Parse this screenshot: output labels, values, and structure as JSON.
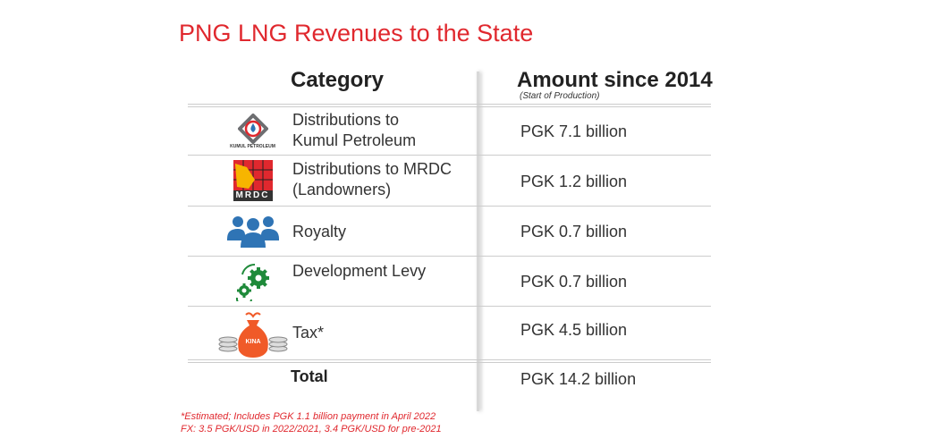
{
  "title": "PNG LNG Revenues to the State",
  "headers": {
    "category": "Category",
    "amount": "Amount since 2014",
    "amount_note": "(Start of Production)"
  },
  "rows": [
    {
      "icon": "kumul-petroleum-logo",
      "logo_text": "KUMUL PETROLEUM",
      "line1": "Distributions to",
      "line2": "Kumul Petroleum",
      "amount": "PGK 7.1 billion"
    },
    {
      "icon": "mrdc-logo",
      "logo_text": "MRDC",
      "line1": "Distributions to MRDC",
      "line2": "(Landowners)",
      "amount": "PGK 1.2 billion"
    },
    {
      "icon": "people-icon",
      "line1": "Royalty",
      "line2": "",
      "amount": "PGK 0.7 billion"
    },
    {
      "icon": "gears-icon",
      "line1": "Development Levy",
      "line2": "",
      "amount": "PGK 0.7 billion"
    },
    {
      "icon": "money-bag-icon",
      "logo_text": "KINA",
      "line1": "Tax*",
      "line2": "",
      "amount": "PGK 4.5 billion"
    }
  ],
  "total": {
    "label": "Total",
    "amount": "PGK 14.2 billion"
  },
  "footnotes": [
    "*Estimated; Includes PGK 1.1 billion payment in April 2022",
    "FX: 3.5 PGK/USD in 2022/2021, 3.4 PGK/USD for pre-2021"
  ],
  "colors": {
    "accent": "#e0282e",
    "royalty": "#2f74b5",
    "levy": "#1f8a3a",
    "tax": "#f05a28"
  }
}
